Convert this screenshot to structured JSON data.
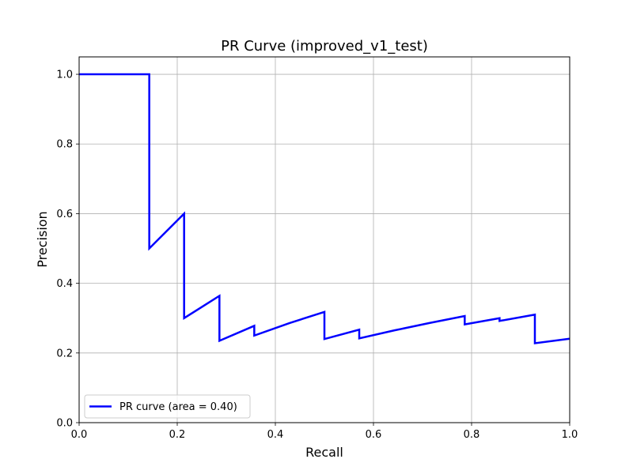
{
  "chart_data": {
    "type": "line",
    "title": "PR Curve (improved_v1_test)",
    "xlabel": "Recall",
    "ylabel": "Precision",
    "xlim": [
      0.0,
      1.0
    ],
    "ylim": [
      0.0,
      1.05
    ],
    "xticks": [
      "0.0",
      "0.2",
      "0.4",
      "0.6",
      "0.8",
      "1.0"
    ],
    "yticks": [
      "0.0",
      "0.2",
      "0.4",
      "0.6",
      "0.8",
      "1.0"
    ],
    "grid": true,
    "legend_position": "lower-left",
    "series": [
      {
        "name": "PR curve (area = 0.40)",
        "color": "#0000ff",
        "x": [
          0.0,
          0.143,
          0.143,
          0.214,
          0.214,
          0.286,
          0.286,
          0.357,
          0.357,
          0.429,
          0.5,
          0.5,
          0.571,
          0.571,
          0.643,
          0.714,
          0.786,
          0.786,
          0.857,
          0.857,
          0.929,
          0.929,
          1.0
        ],
        "y": [
          1.0,
          1.0,
          0.5,
          0.6,
          0.3,
          0.364,
          0.235,
          0.278,
          0.25,
          0.286,
          0.318,
          0.24,
          0.267,
          0.242,
          0.265,
          0.286,
          0.306,
          0.282,
          0.3,
          0.292,
          0.31,
          0.228,
          0.241
        ]
      }
    ]
  }
}
